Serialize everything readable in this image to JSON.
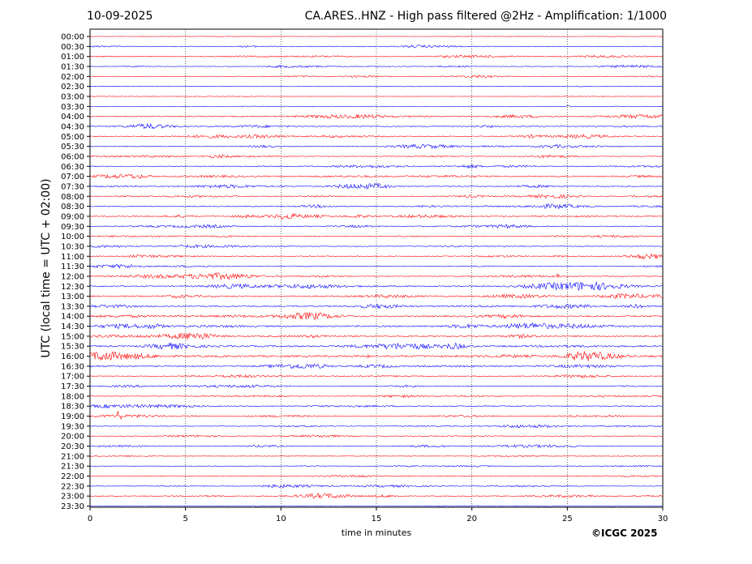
{
  "header": {
    "date": "10-09-2025",
    "title": "CA.ARES..HNZ - High pass filtered @2Hz - Amplification: 1/1000"
  },
  "footer": {
    "copyright": "©ICGC 2025"
  },
  "chart_data": {
    "type": "line",
    "title": "CA.ARES..HNZ - High pass filtered @2Hz - Amplification: 1/1000",
    "xlabel": "time in minutes",
    "ylabel": "UTC (local time = UTC + 02:00)",
    "xlim": [
      0,
      30
    ],
    "x_ticks": [
      "0",
      "5",
      "10",
      "15",
      "20",
      "25",
      "30"
    ],
    "vertical_gridlines_at": [
      5,
      10,
      15,
      20,
      25
    ],
    "grid": "vertical dotted",
    "colors": {
      "odd_rows": "#ff0000",
      "even_rows": "#0000ff"
    },
    "rows": [
      "00:00",
      "00:30",
      "01:00",
      "01:30",
      "02:00",
      "02:30",
      "03:00",
      "03:30",
      "04:00",
      "04:30",
      "05:00",
      "05:30",
      "06:00",
      "06:30",
      "07:00",
      "07:30",
      "08:00",
      "08:30",
      "09:00",
      "09:30",
      "10:00",
      "10:30",
      "11:00",
      "11:30",
      "12:00",
      "12:30",
      "13:00",
      "13:30",
      "14:00",
      "14:30",
      "15:00",
      "15:30",
      "16:00",
      "16:30",
      "17:00",
      "17:30",
      "18:00",
      "18:30",
      "19:00",
      "19:30",
      "20:00",
      "20:30",
      "21:00",
      "21:30",
      "22:00",
      "22:30",
      "23:00",
      "23:30"
    ],
    "noise_level": [
      0.2,
      0.8,
      1.2,
      0.8,
      0.9,
      0.3,
      0.3,
      0.3,
      1.6,
      1.6,
      1.5,
      1.3,
      1.0,
      1.3,
      1.8,
      1.5,
      1.3,
      1.5,
      1.5,
      1.3,
      1.2,
      1.2,
      1.4,
      1.0,
      1.5,
      2.0,
      2.0,
      2.0,
      2.3,
      2.5,
      2.3,
      2.6,
      3.0,
      1.7,
      1.2,
      1.0,
      1.0,
      1.5,
      1.0,
      0.9,
      1.0,
      1.0,
      0.7,
      0.7,
      0.8,
      0.8,
      1.2,
      0.7
    ],
    "events": [
      {
        "row": "19:00",
        "minute": 1.5,
        "amplitude": 7
      },
      {
        "row": "03:30",
        "minute": 25.0,
        "amplitude": 2
      },
      {
        "row": "12:00",
        "minute": 24.5,
        "amplitude": 3
      },
      {
        "row": "16:00",
        "minute": 14.5,
        "amplitude": 3
      },
      {
        "row": "15:30",
        "minute": 19.5,
        "amplitude": 3
      },
      {
        "row": "13:30",
        "minute": 27.8,
        "amplitude": 3
      },
      {
        "row": "07:30",
        "minute": 10.0,
        "amplitude": 3
      }
    ]
  }
}
